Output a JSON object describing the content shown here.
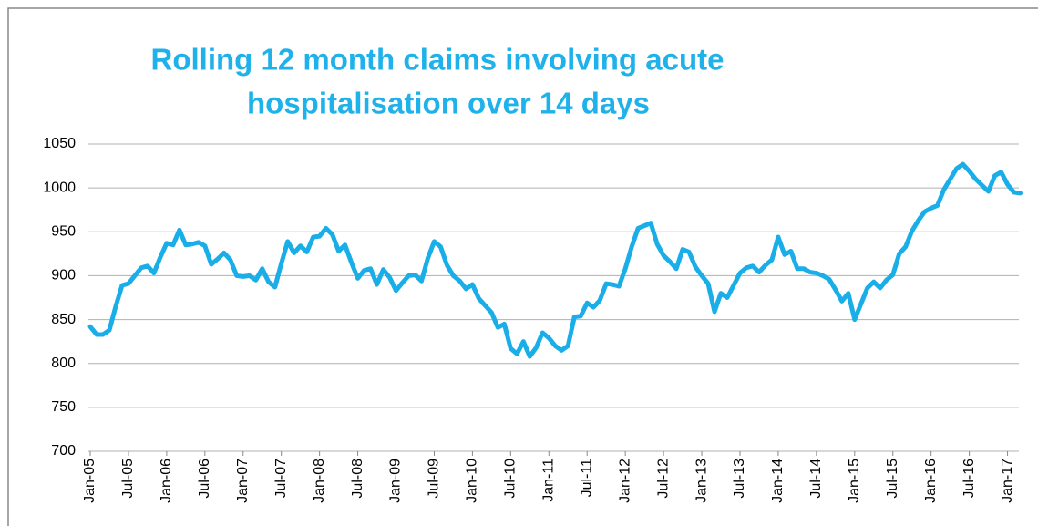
{
  "chart_data": {
    "type": "line",
    "title": [
      "Rolling 12 month claims involving acute",
      "hospitalisation over 14 days"
    ],
    "categories": [
      "Jan-05",
      null,
      null,
      null,
      null,
      null,
      "Jul-05",
      null,
      null,
      null,
      null,
      null,
      "Jan-06",
      null,
      null,
      null,
      null,
      null,
      "Jul-06",
      null,
      null,
      null,
      null,
      null,
      "Jan-07",
      null,
      null,
      null,
      null,
      null,
      "Jul-07",
      null,
      null,
      null,
      null,
      null,
      "Jan-08",
      null,
      null,
      null,
      null,
      null,
      "Jul-08",
      null,
      null,
      null,
      null,
      null,
      "Jan-09",
      null,
      null,
      null,
      null,
      null,
      "Jul-09",
      null,
      null,
      null,
      null,
      null,
      "Jan-10",
      null,
      null,
      null,
      null,
      null,
      "Jul-10",
      null,
      null,
      null,
      null,
      null,
      "Jan-11",
      null,
      null,
      null,
      null,
      null,
      "Jul-11",
      null,
      null,
      null,
      null,
      null,
      "Jan-12",
      null,
      null,
      null,
      null,
      null,
      "Jul-12",
      null,
      null,
      null,
      null,
      null,
      "Jan-13",
      null,
      null,
      null,
      null,
      null,
      "Jul-13",
      null,
      null,
      null,
      null,
      null,
      "Jan-14",
      null,
      null,
      null,
      null,
      null,
      "Jul-14",
      null,
      null,
      null,
      null,
      null,
      "Jan-15",
      null,
      null,
      null,
      null,
      null,
      "Jul-15",
      null,
      null,
      null,
      null,
      null,
      "Jan-16",
      null,
      null,
      null,
      null,
      null,
      "Jul-16",
      null,
      null,
      null,
      null,
      null,
      "Jan-17",
      null,
      null
    ],
    "values": [
      842,
      833,
      833,
      838,
      865,
      889,
      891,
      900,
      909,
      911,
      903,
      921,
      937,
      935,
      952,
      935,
      936,
      938,
      934,
      913,
      919,
      926,
      918,
      900,
      899,
      900,
      895,
      908,
      893,
      887,
      914,
      939,
      926,
      934,
      927,
      944,
      945,
      954,
      947,
      928,
      935,
      915,
      897,
      906,
      908,
      890,
      907,
      898,
      883,
      892,
      900,
      901,
      894,
      920,
      939,
      933,
      912,
      900,
      894,
      885,
      890,
      874,
      866,
      858,
      841,
      845,
      817,
      811,
      825,
      808,
      818,
      835,
      829,
      820,
      815,
      820,
      853,
      854,
      869,
      864,
      872,
      891,
      890,
      888,
      908,
      933,
      954,
      957,
      960,
      936,
      923,
      916,
      908,
      930,
      927,
      910,
      900,
      891,
      859,
      880,
      875,
      889,
      903,
      909,
      911,
      904,
      912,
      918,
      944,
      924,
      928,
      908,
      908,
      904,
      903,
      900,
      896,
      884,
      871,
      880,
      850,
      868,
      886,
      893,
      886,
      895,
      901,
      925,
      933,
      951,
      963,
      973,
      977,
      980,
      998,
      1010,
      1022,
      1027,
      1019,
      1010,
      1003,
      996,
      1014,
      1018,
      1004,
      995,
      994
    ],
    "color": "#1aaee8",
    "ylim": [
      700,
      1050
    ],
    "yticks": [
      700,
      750,
      800,
      850,
      900,
      950,
      1000,
      1050
    ],
    "grid": true
  }
}
